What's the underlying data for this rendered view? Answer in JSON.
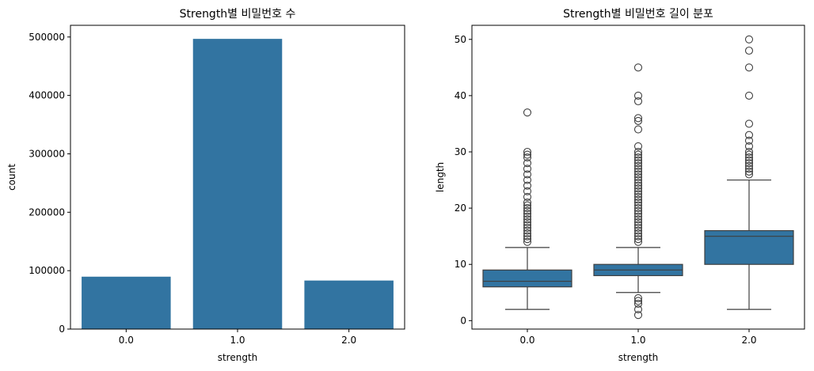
{
  "chart_data": [
    {
      "type": "bar",
      "title": "Strength별 비밀번호 수",
      "xlabel": "strength",
      "ylabel": "count",
      "categories": [
        "0.0",
        "1.0",
        "2.0"
      ],
      "values": [
        89700,
        496800,
        83100
      ],
      "ylim": [
        0,
        520000
      ],
      "yticks": [
        0,
        100000,
        200000,
        300000,
        400000,
        500000
      ],
      "ytick_labels": [
        "0",
        "100000",
        "200000",
        "300000",
        "400000",
        "500000"
      ],
      "color": "#3274a1",
      "grid": false,
      "legend": "none"
    },
    {
      "type": "box",
      "title": "Strength별 비밀번호 길이 분포",
      "xlabel": "strength",
      "ylabel": "length",
      "categories": [
        "0.0",
        "1.0",
        "2.0"
      ],
      "ylim": [
        -1.5,
        52.5
      ],
      "yticks": [
        0,
        10,
        20,
        30,
        40,
        50
      ],
      "ytick_labels": [
        "0",
        "10",
        "20",
        "30",
        "40",
        "50"
      ],
      "color": "#3274a1",
      "grid": false,
      "legend": "none",
      "boxes": [
        {
          "category": "0.0",
          "whisker_low": 2,
          "q1": 6,
          "median": 7,
          "q3": 9,
          "whisker_high": 13,
          "outliers": [
            14,
            14.5,
            15,
            15.5,
            16,
            16.5,
            17,
            17.5,
            18,
            18.5,
            19,
            19.5,
            20,
            20.5,
            21,
            22,
            23,
            24,
            25,
            26,
            27,
            28,
            29,
            29.5,
            30,
            37
          ]
        },
        {
          "category": "1.0",
          "whisker_low": 5,
          "q1": 8,
          "median": 9,
          "q3": 10,
          "whisker_high": 13,
          "outliers": [
            1,
            2,
            3,
            3.5,
            4,
            14,
            14.5,
            15,
            15.5,
            16,
            16.5,
            17,
            17.5,
            18,
            18.5,
            19,
            19.5,
            20,
            20.5,
            21,
            21.5,
            22,
            22.5,
            23,
            23.5,
            24,
            24.5,
            25,
            25.5,
            26,
            26.5,
            27,
            27.5,
            28,
            28.5,
            29,
            29.5,
            30,
            31,
            34,
            35.5,
            36,
            39,
            40,
            45
          ]
        },
        {
          "category": "2.0",
          "whisker_low": 2,
          "q1": 10,
          "median": 15,
          "q3": 16,
          "whisker_high": 25,
          "outliers": [
            26,
            26.5,
            27,
            27.5,
            28,
            28.5,
            29,
            29.5,
            30,
            31,
            32,
            33,
            35,
            40,
            45,
            48,
            50
          ]
        }
      ]
    }
  ]
}
